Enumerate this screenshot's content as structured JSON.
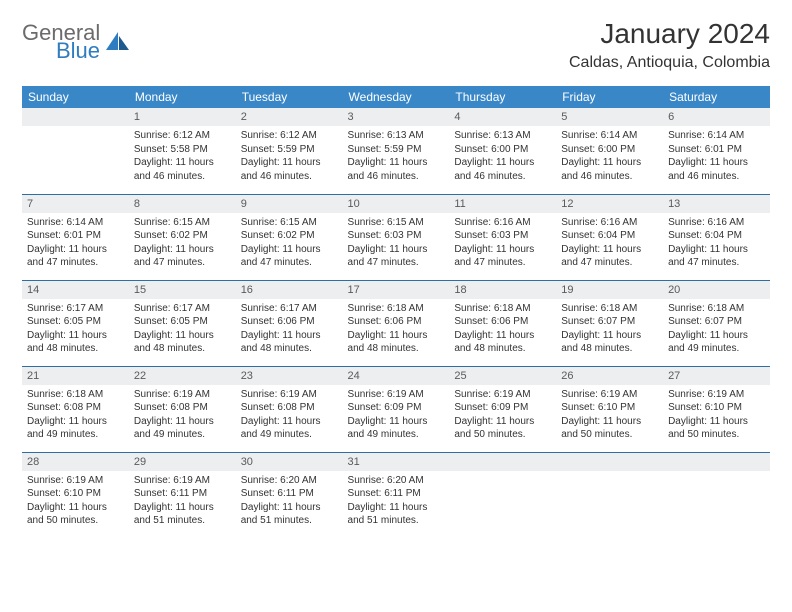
{
  "logo": {
    "text_general": "General",
    "text_blue": "Blue"
  },
  "title": "January 2024",
  "location": "Caldas, Antioquia, Colombia",
  "weekdays": [
    "Sunday",
    "Monday",
    "Tuesday",
    "Wednesday",
    "Thursday",
    "Friday",
    "Saturday"
  ],
  "colors": {
    "header_bg": "#3a87c8",
    "header_text": "#ffffff",
    "daynum_bg": "#eceef0",
    "row_divider": "#2f6ea5",
    "logo_gray": "#6b6b6b",
    "logo_blue": "#2f7cc0"
  },
  "weeks": [
    [
      {
        "n": "",
        "sunrise": "",
        "sunset": "",
        "daylight": ""
      },
      {
        "n": "1",
        "sunrise": "Sunrise: 6:12 AM",
        "sunset": "Sunset: 5:58 PM",
        "daylight": "Daylight: 11 hours and 46 minutes."
      },
      {
        "n": "2",
        "sunrise": "Sunrise: 6:12 AM",
        "sunset": "Sunset: 5:59 PM",
        "daylight": "Daylight: 11 hours and 46 minutes."
      },
      {
        "n": "3",
        "sunrise": "Sunrise: 6:13 AM",
        "sunset": "Sunset: 5:59 PM",
        "daylight": "Daylight: 11 hours and 46 minutes."
      },
      {
        "n": "4",
        "sunrise": "Sunrise: 6:13 AM",
        "sunset": "Sunset: 6:00 PM",
        "daylight": "Daylight: 11 hours and 46 minutes."
      },
      {
        "n": "5",
        "sunrise": "Sunrise: 6:14 AM",
        "sunset": "Sunset: 6:00 PM",
        "daylight": "Daylight: 11 hours and 46 minutes."
      },
      {
        "n": "6",
        "sunrise": "Sunrise: 6:14 AM",
        "sunset": "Sunset: 6:01 PM",
        "daylight": "Daylight: 11 hours and 46 minutes."
      }
    ],
    [
      {
        "n": "7",
        "sunrise": "Sunrise: 6:14 AM",
        "sunset": "Sunset: 6:01 PM",
        "daylight": "Daylight: 11 hours and 47 minutes."
      },
      {
        "n": "8",
        "sunrise": "Sunrise: 6:15 AM",
        "sunset": "Sunset: 6:02 PM",
        "daylight": "Daylight: 11 hours and 47 minutes."
      },
      {
        "n": "9",
        "sunrise": "Sunrise: 6:15 AM",
        "sunset": "Sunset: 6:02 PM",
        "daylight": "Daylight: 11 hours and 47 minutes."
      },
      {
        "n": "10",
        "sunrise": "Sunrise: 6:15 AM",
        "sunset": "Sunset: 6:03 PM",
        "daylight": "Daylight: 11 hours and 47 minutes."
      },
      {
        "n": "11",
        "sunrise": "Sunrise: 6:16 AM",
        "sunset": "Sunset: 6:03 PM",
        "daylight": "Daylight: 11 hours and 47 minutes."
      },
      {
        "n": "12",
        "sunrise": "Sunrise: 6:16 AM",
        "sunset": "Sunset: 6:04 PM",
        "daylight": "Daylight: 11 hours and 47 minutes."
      },
      {
        "n": "13",
        "sunrise": "Sunrise: 6:16 AM",
        "sunset": "Sunset: 6:04 PM",
        "daylight": "Daylight: 11 hours and 47 minutes."
      }
    ],
    [
      {
        "n": "14",
        "sunrise": "Sunrise: 6:17 AM",
        "sunset": "Sunset: 6:05 PM",
        "daylight": "Daylight: 11 hours and 48 minutes."
      },
      {
        "n": "15",
        "sunrise": "Sunrise: 6:17 AM",
        "sunset": "Sunset: 6:05 PM",
        "daylight": "Daylight: 11 hours and 48 minutes."
      },
      {
        "n": "16",
        "sunrise": "Sunrise: 6:17 AM",
        "sunset": "Sunset: 6:06 PM",
        "daylight": "Daylight: 11 hours and 48 minutes."
      },
      {
        "n": "17",
        "sunrise": "Sunrise: 6:18 AM",
        "sunset": "Sunset: 6:06 PM",
        "daylight": "Daylight: 11 hours and 48 minutes."
      },
      {
        "n": "18",
        "sunrise": "Sunrise: 6:18 AM",
        "sunset": "Sunset: 6:06 PM",
        "daylight": "Daylight: 11 hours and 48 minutes."
      },
      {
        "n": "19",
        "sunrise": "Sunrise: 6:18 AM",
        "sunset": "Sunset: 6:07 PM",
        "daylight": "Daylight: 11 hours and 48 minutes."
      },
      {
        "n": "20",
        "sunrise": "Sunrise: 6:18 AM",
        "sunset": "Sunset: 6:07 PM",
        "daylight": "Daylight: 11 hours and 49 minutes."
      }
    ],
    [
      {
        "n": "21",
        "sunrise": "Sunrise: 6:18 AM",
        "sunset": "Sunset: 6:08 PM",
        "daylight": "Daylight: 11 hours and 49 minutes."
      },
      {
        "n": "22",
        "sunrise": "Sunrise: 6:19 AM",
        "sunset": "Sunset: 6:08 PM",
        "daylight": "Daylight: 11 hours and 49 minutes."
      },
      {
        "n": "23",
        "sunrise": "Sunrise: 6:19 AM",
        "sunset": "Sunset: 6:08 PM",
        "daylight": "Daylight: 11 hours and 49 minutes."
      },
      {
        "n": "24",
        "sunrise": "Sunrise: 6:19 AM",
        "sunset": "Sunset: 6:09 PM",
        "daylight": "Daylight: 11 hours and 49 minutes."
      },
      {
        "n": "25",
        "sunrise": "Sunrise: 6:19 AM",
        "sunset": "Sunset: 6:09 PM",
        "daylight": "Daylight: 11 hours and 50 minutes."
      },
      {
        "n": "26",
        "sunrise": "Sunrise: 6:19 AM",
        "sunset": "Sunset: 6:10 PM",
        "daylight": "Daylight: 11 hours and 50 minutes."
      },
      {
        "n": "27",
        "sunrise": "Sunrise: 6:19 AM",
        "sunset": "Sunset: 6:10 PM",
        "daylight": "Daylight: 11 hours and 50 minutes."
      }
    ],
    [
      {
        "n": "28",
        "sunrise": "Sunrise: 6:19 AM",
        "sunset": "Sunset: 6:10 PM",
        "daylight": "Daylight: 11 hours and 50 minutes."
      },
      {
        "n": "29",
        "sunrise": "Sunrise: 6:19 AM",
        "sunset": "Sunset: 6:11 PM",
        "daylight": "Daylight: 11 hours and 51 minutes."
      },
      {
        "n": "30",
        "sunrise": "Sunrise: 6:20 AM",
        "sunset": "Sunset: 6:11 PM",
        "daylight": "Daylight: 11 hours and 51 minutes."
      },
      {
        "n": "31",
        "sunrise": "Sunrise: 6:20 AM",
        "sunset": "Sunset: 6:11 PM",
        "daylight": "Daylight: 11 hours and 51 minutes."
      },
      {
        "n": "",
        "sunrise": "",
        "sunset": "",
        "daylight": ""
      },
      {
        "n": "",
        "sunrise": "",
        "sunset": "",
        "daylight": ""
      },
      {
        "n": "",
        "sunrise": "",
        "sunset": "",
        "daylight": ""
      }
    ]
  ]
}
